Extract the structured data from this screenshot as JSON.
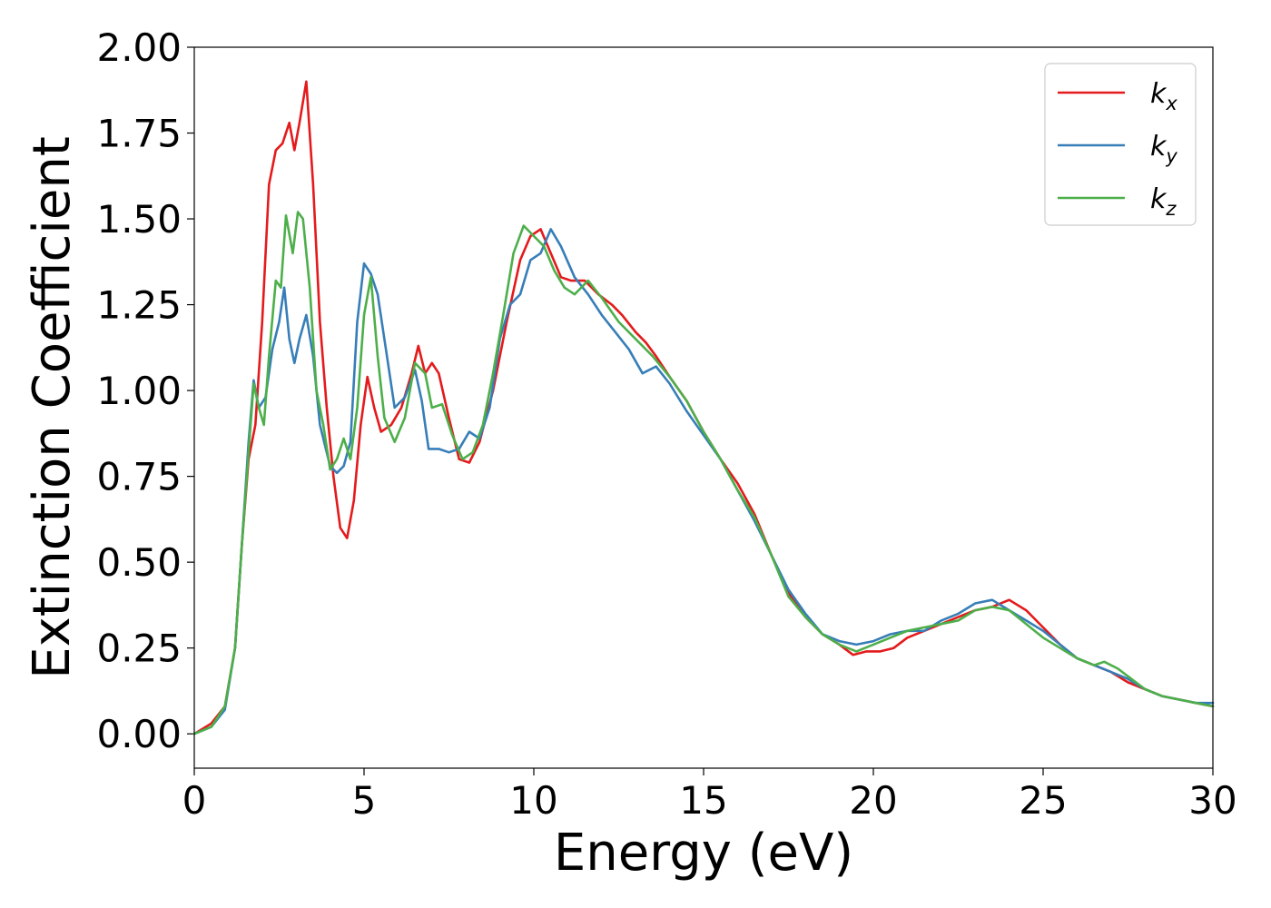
{
  "chart_data": {
    "type": "line",
    "title": "",
    "xlabel": "Energy (eV)",
    "ylabel": "Extinction Coefficient",
    "xlim": [
      0,
      30
    ],
    "ylim": [
      -0.1,
      2.0
    ],
    "xticks": [
      0,
      5,
      10,
      15,
      20,
      25,
      30
    ],
    "xtick_labels": [
      "0",
      "5",
      "10",
      "15",
      "20",
      "25",
      "30"
    ],
    "yticks": [
      0.0,
      0.25,
      0.5,
      0.75,
      1.0,
      1.25,
      1.5,
      1.75,
      2.0
    ],
    "ytick_labels": [
      "0.00",
      "0.25",
      "0.50",
      "0.75",
      "1.00",
      "1.25",
      "1.50",
      "1.75",
      "2.00"
    ],
    "grid": false,
    "legend_position": "top-right",
    "series": [
      {
        "name": "k",
        "subscript": "x",
        "color": "#e41a1c",
        "x": [
          0,
          0.5,
          0.9,
          1.2,
          1.4,
          1.6,
          1.8,
          2.0,
          2.2,
          2.4,
          2.6,
          2.8,
          2.95,
          3.1,
          3.3,
          3.5,
          3.7,
          3.9,
          4.1,
          4.3,
          4.5,
          4.7,
          4.9,
          5.1,
          5.3,
          5.5,
          5.8,
          6.1,
          6.4,
          6.6,
          6.8,
          7.0,
          7.2,
          7.5,
          7.8,
          8.1,
          8.4,
          8.8,
          9.2,
          9.6,
          9.9,
          10.2,
          10.5,
          10.8,
          11.1,
          11.5,
          11.9,
          12.3,
          12.6,
          13.0,
          13.3,
          13.6,
          14.0,
          14.5,
          15.0,
          15.5,
          16.0,
          16.5,
          17.0,
          17.5,
          18.0,
          18.5,
          19.0,
          19.4,
          19.8,
          20.2,
          20.6,
          21.0,
          21.5,
          22.0,
          22.5,
          23.0,
          23.5,
          24.0,
          24.5,
          25.0,
          25.5,
          26.0,
          26.5,
          27.0,
          27.5,
          28.0,
          28.5,
          29.0,
          29.5,
          30.0
        ],
        "y": [
          0.0,
          0.03,
          0.08,
          0.25,
          0.55,
          0.8,
          0.9,
          1.2,
          1.6,
          1.7,
          1.72,
          1.78,
          1.7,
          1.78,
          1.9,
          1.6,
          1.2,
          0.95,
          0.75,
          0.6,
          0.57,
          0.68,
          0.9,
          1.04,
          0.95,
          0.88,
          0.9,
          0.95,
          1.05,
          1.13,
          1.05,
          1.08,
          1.05,
          0.92,
          0.8,
          0.79,
          0.85,
          1.0,
          1.2,
          1.38,
          1.45,
          1.47,
          1.4,
          1.33,
          1.32,
          1.32,
          1.28,
          1.25,
          1.22,
          1.17,
          1.14,
          1.1,
          1.04,
          0.97,
          0.88,
          0.8,
          0.73,
          0.64,
          0.52,
          0.41,
          0.34,
          0.29,
          0.26,
          0.23,
          0.24,
          0.24,
          0.25,
          0.28,
          0.3,
          0.32,
          0.34,
          0.36,
          0.37,
          0.39,
          0.36,
          0.31,
          0.26,
          0.22,
          0.2,
          0.18,
          0.15,
          0.13,
          0.11,
          0.1,
          0.09,
          0.08
        ]
      },
      {
        "name": "k",
        "subscript": "y",
        "color": "#377eb8",
        "x": [
          0,
          0.5,
          0.9,
          1.2,
          1.4,
          1.6,
          1.75,
          1.9,
          2.1,
          2.3,
          2.5,
          2.65,
          2.8,
          2.95,
          3.1,
          3.3,
          3.5,
          3.7,
          4.0,
          4.2,
          4.4,
          4.6,
          4.8,
          5.0,
          5.2,
          5.4,
          5.6,
          5.9,
          6.2,
          6.5,
          6.7,
          6.9,
          7.2,
          7.5,
          7.8,
          8.1,
          8.4,
          8.7,
          9.0,
          9.3,
          9.6,
          9.9,
          10.2,
          10.5,
          10.8,
          11.2,
          11.6,
          12.0,
          12.4,
          12.8,
          13.2,
          13.6,
          14.0,
          14.5,
          15.0,
          15.5,
          16.0,
          16.5,
          17.0,
          17.5,
          18.0,
          18.5,
          19.0,
          19.5,
          20.0,
          20.5,
          21.0,
          21.5,
          22.0,
          22.5,
          23.0,
          23.5,
          24.0,
          24.5,
          25.0,
          25.5,
          26.0,
          26.5,
          27.0,
          27.5,
          28.0,
          28.5,
          29.0,
          29.5,
          30.0
        ],
        "y": [
          0.0,
          0.02,
          0.07,
          0.25,
          0.55,
          0.85,
          1.03,
          0.95,
          0.98,
          1.12,
          1.2,
          1.3,
          1.15,
          1.08,
          1.15,
          1.22,
          1.1,
          0.9,
          0.78,
          0.76,
          0.78,
          0.85,
          1.2,
          1.37,
          1.34,
          1.28,
          1.15,
          0.95,
          0.98,
          1.06,
          0.97,
          0.83,
          0.83,
          0.82,
          0.83,
          0.88,
          0.86,
          0.95,
          1.15,
          1.25,
          1.28,
          1.38,
          1.4,
          1.47,
          1.42,
          1.33,
          1.28,
          1.22,
          1.17,
          1.12,
          1.05,
          1.07,
          1.02,
          0.94,
          0.87,
          0.8,
          0.71,
          0.62,
          0.52,
          0.42,
          0.35,
          0.29,
          0.27,
          0.26,
          0.27,
          0.29,
          0.3,
          0.3,
          0.33,
          0.35,
          0.38,
          0.39,
          0.36,
          0.33,
          0.3,
          0.26,
          0.22,
          0.2,
          0.18,
          0.16,
          0.13,
          0.11,
          0.1,
          0.09,
          0.09
        ]
      },
      {
        "name": "k",
        "subscript": "z",
        "color": "#4daf4a",
        "x": [
          0,
          0.5,
          0.9,
          1.2,
          1.4,
          1.6,
          1.75,
          1.9,
          2.05,
          2.2,
          2.4,
          2.55,
          2.7,
          2.9,
          3.05,
          3.2,
          3.4,
          3.6,
          3.8,
          4.0,
          4.2,
          4.4,
          4.6,
          4.8,
          5.0,
          5.2,
          5.4,
          5.6,
          5.9,
          6.2,
          6.5,
          6.8,
          7.0,
          7.3,
          7.6,
          7.9,
          8.2,
          8.5,
          8.8,
          9.1,
          9.4,
          9.7,
          10.0,
          10.3,
          10.6,
          10.9,
          11.2,
          11.6,
          12.0,
          12.5,
          13.0,
          13.5,
          14.0,
          14.5,
          15.0,
          15.5,
          16.0,
          16.5,
          17.0,
          17.5,
          18.0,
          18.5,
          19.0,
          19.5,
          20.0,
          20.5,
          21.0,
          21.5,
          22.0,
          22.5,
          23.0,
          23.5,
          24.0,
          24.5,
          25.0,
          25.5,
          26.0,
          26.5,
          26.8,
          27.2,
          27.6,
          28.0,
          28.5,
          29.0,
          29.5,
          30.0
        ],
        "y": [
          0.0,
          0.02,
          0.08,
          0.25,
          0.55,
          0.82,
          1.02,
          0.95,
          0.9,
          1.1,
          1.32,
          1.3,
          1.51,
          1.4,
          1.52,
          1.5,
          1.3,
          1.0,
          0.9,
          0.77,
          0.8,
          0.86,
          0.8,
          0.95,
          1.22,
          1.33,
          1.1,
          0.92,
          0.85,
          0.92,
          1.08,
          1.05,
          0.95,
          0.96,
          0.87,
          0.8,
          0.82,
          0.9,
          1.05,
          1.22,
          1.4,
          1.48,
          1.45,
          1.42,
          1.35,
          1.3,
          1.28,
          1.32,
          1.27,
          1.2,
          1.15,
          1.1,
          1.04,
          0.97,
          0.88,
          0.8,
          0.71,
          0.63,
          0.52,
          0.4,
          0.34,
          0.29,
          0.26,
          0.24,
          0.26,
          0.28,
          0.3,
          0.31,
          0.32,
          0.33,
          0.36,
          0.37,
          0.36,
          0.32,
          0.28,
          0.25,
          0.22,
          0.2,
          0.21,
          0.19,
          0.16,
          0.13,
          0.11,
          0.1,
          0.09,
          0.08
        ]
      }
    ]
  }
}
